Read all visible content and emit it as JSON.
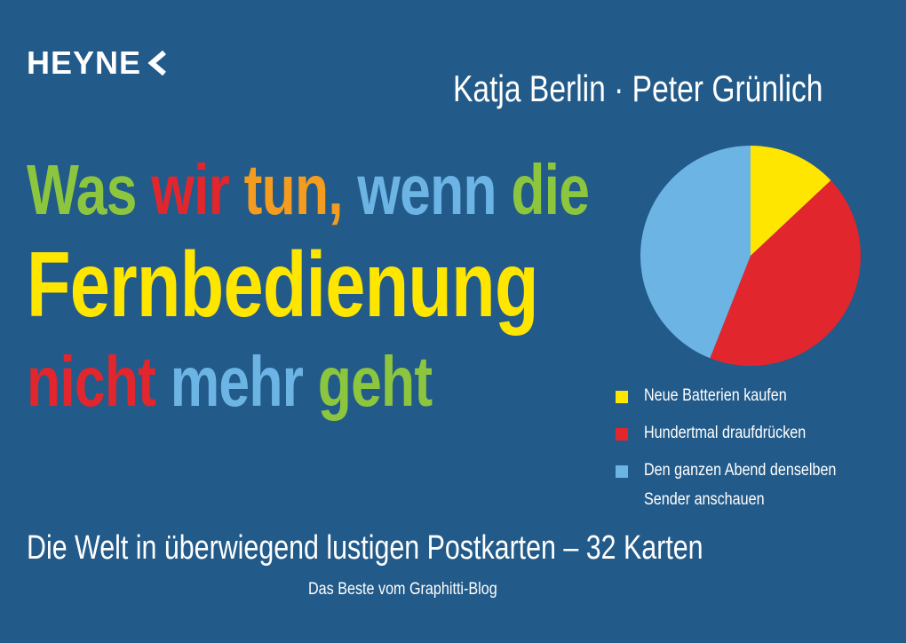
{
  "header": {
    "publisher": "HEYNE",
    "authors": "Katja Berlin · Peter Grünlich"
  },
  "title_lines": [
    [
      {
        "text": "Was",
        "color": "#8cc63f"
      },
      {
        "text": "wir",
        "color": "#e1262d"
      },
      {
        "text": "tun,",
        "color": "#f39c1f"
      },
      {
        "text": "wenn",
        "color": "#6cb4e4"
      },
      {
        "text": "die",
        "color": "#8cc63f"
      }
    ],
    [
      {
        "text": "Fernbedienung",
        "color": "#ffe600"
      }
    ],
    [
      {
        "text": "nicht",
        "color": "#e1262d"
      },
      {
        "text": "mehr",
        "color": "#6cb4e4"
      },
      {
        "text": "geht",
        "color": "#8cc63f"
      }
    ]
  ],
  "chart_data": {
    "type": "pie",
    "categories": [
      "Neue Batterien kaufen",
      "Hundertmal draufdrücken",
      "Den ganzen Abend denselben Sender anschauen"
    ],
    "values": [
      13,
      43,
      44
    ],
    "colors": [
      "#ffe600",
      "#e1262d",
      "#6cb4e4"
    ]
  },
  "footer": {
    "subtitle": "Die Welt in überwiegend lustigen Postkarten – 32 Karten",
    "note": "Das Beste vom Graphitti-Blog"
  }
}
